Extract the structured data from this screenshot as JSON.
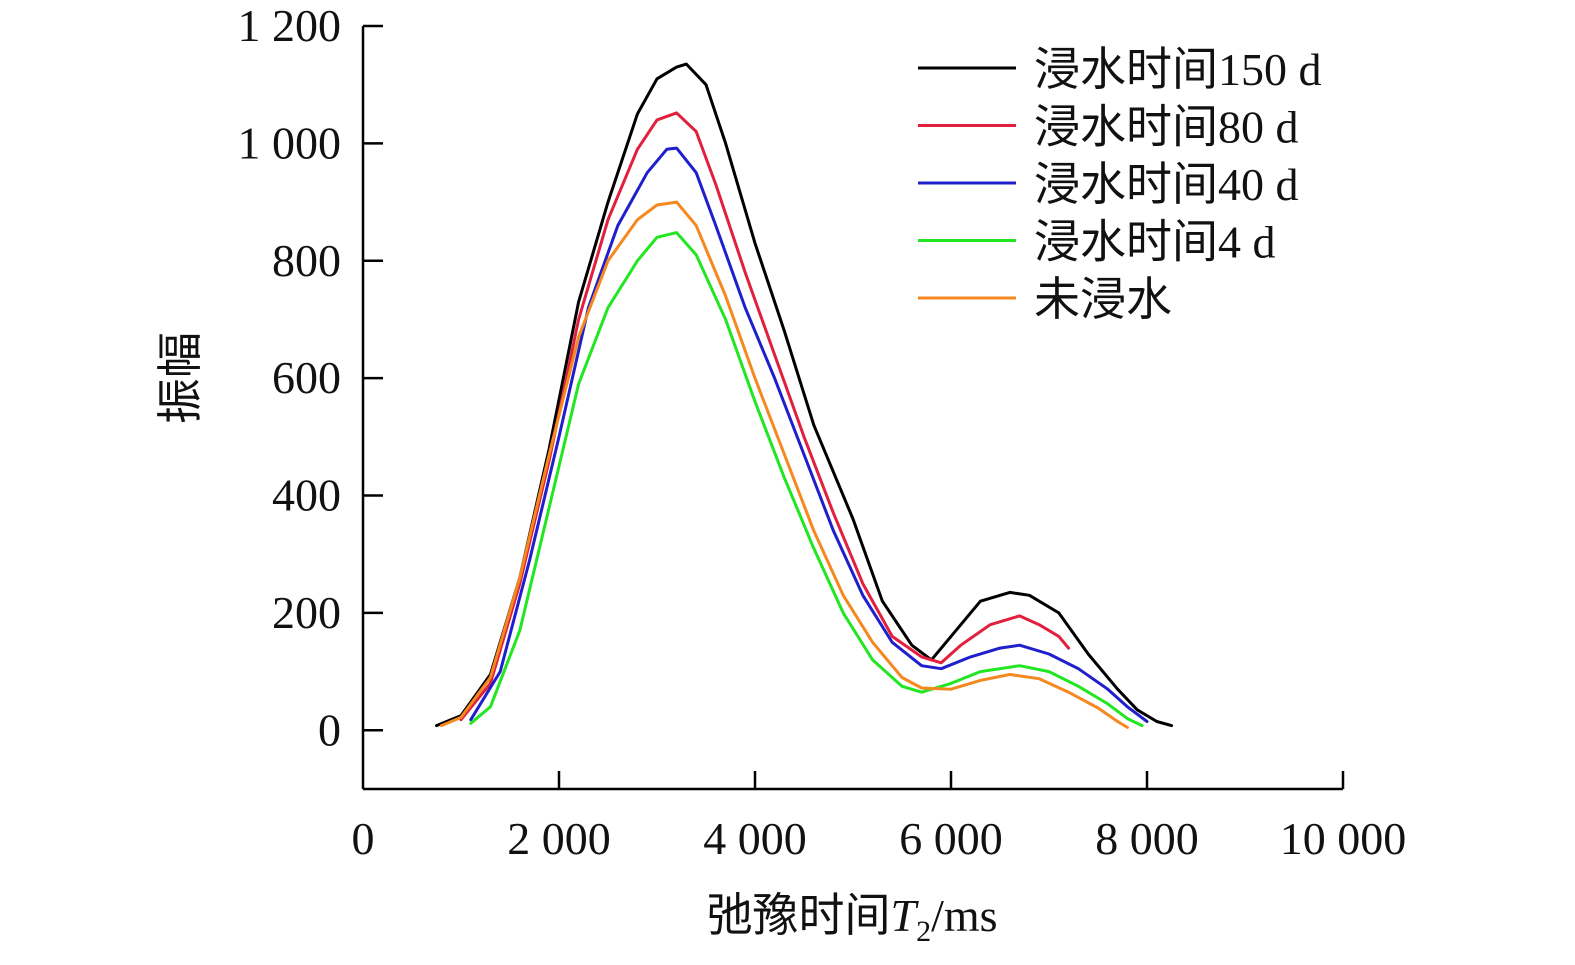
{
  "chart_data": {
    "type": "line",
    "title": "",
    "xlabel": "弛豫时间",
    "xlabel_symbol": "T",
    "xlabel_subscript": "2",
    "xlabel_unit": "/ms",
    "ylabel": "振幅",
    "xlim": [
      0,
      10000
    ],
    "ylim": [
      -100,
      1200
    ],
    "x_ticks": [
      0,
      2000,
      4000,
      6000,
      8000,
      10000
    ],
    "x_tick_labels": [
      "0",
      "2 000",
      "4 000",
      "6 000",
      "8 000",
      "10 000"
    ],
    "y_ticks": [
      0,
      200,
      400,
      600,
      800,
      1000,
      1200
    ],
    "y_tick_labels": [
      "0",
      "200",
      "400",
      "600",
      "800",
      "1 000",
      "1 200"
    ],
    "grid": false,
    "legend_position": "top-right",
    "series": [
      {
        "name": "浸水时间150 d",
        "color": "#000000",
        "points": [
          [
            750,
            8
          ],
          [
            1000,
            25
          ],
          [
            1300,
            95
          ],
          [
            1600,
            260
          ],
          [
            1900,
            480
          ],
          [
            2200,
            730
          ],
          [
            2500,
            900
          ],
          [
            2800,
            1050
          ],
          [
            3000,
            1110
          ],
          [
            3200,
            1130
          ],
          [
            3300,
            1135
          ],
          [
            3500,
            1100
          ],
          [
            3700,
            1000
          ],
          [
            4000,
            830
          ],
          [
            4300,
            680
          ],
          [
            4600,
            520
          ],
          [
            5000,
            360
          ],
          [
            5300,
            220
          ],
          [
            5600,
            145
          ],
          [
            5800,
            120
          ],
          [
            6000,
            160
          ],
          [
            6300,
            220
          ],
          [
            6600,
            235
          ],
          [
            6800,
            230
          ],
          [
            7100,
            200
          ],
          [
            7400,
            130
          ],
          [
            7700,
            70
          ],
          [
            7900,
            35
          ],
          [
            8100,
            15
          ],
          [
            8250,
            8
          ]
        ]
      },
      {
        "name": "浸水时间80 d",
        "color": "#e0203c",
        "points": [
          [
            1000,
            18
          ],
          [
            1300,
            80
          ],
          [
            1600,
            250
          ],
          [
            1900,
            460
          ],
          [
            2200,
            700
          ],
          [
            2500,
            870
          ],
          [
            2800,
            990
          ],
          [
            3000,
            1040
          ],
          [
            3200,
            1052
          ],
          [
            3400,
            1020
          ],
          [
            3600,
            930
          ],
          [
            3900,
            780
          ],
          [
            4200,
            640
          ],
          [
            4500,
            500
          ],
          [
            4800,
            370
          ],
          [
            5100,
            250
          ],
          [
            5400,
            160
          ],
          [
            5700,
            125
          ],
          [
            5900,
            115
          ],
          [
            6100,
            145
          ],
          [
            6400,
            180
          ],
          [
            6700,
            195
          ],
          [
            6900,
            180
          ],
          [
            7100,
            160
          ],
          [
            7200,
            140
          ]
        ]
      },
      {
        "name": "浸水时间40 d",
        "color": "#1f1fcc",
        "points": [
          [
            1100,
            18
          ],
          [
            1400,
            100
          ],
          [
            1700,
            290
          ],
          [
            2000,
            500
          ],
          [
            2300,
            720
          ],
          [
            2600,
            860
          ],
          [
            2900,
            950
          ],
          [
            3100,
            990
          ],
          [
            3200,
            992
          ],
          [
            3400,
            950
          ],
          [
            3600,
            860
          ],
          [
            3900,
            720
          ],
          [
            4200,
            600
          ],
          [
            4500,
            470
          ],
          [
            4800,
            340
          ],
          [
            5100,
            230
          ],
          [
            5400,
            150
          ],
          [
            5700,
            110
          ],
          [
            5900,
            105
          ],
          [
            6200,
            125
          ],
          [
            6500,
            140
          ],
          [
            6700,
            145
          ],
          [
            7000,
            130
          ],
          [
            7300,
            105
          ],
          [
            7600,
            70
          ],
          [
            7800,
            40
          ],
          [
            8000,
            15
          ]
        ]
      },
      {
        "name": "浸水时间4 d",
        "color": "#22e622",
        "points": [
          [
            1100,
            12
          ],
          [
            1300,
            40
          ],
          [
            1600,
            170
          ],
          [
            1900,
            380
          ],
          [
            2200,
            590
          ],
          [
            2500,
            720
          ],
          [
            2800,
            800
          ],
          [
            3000,
            840
          ],
          [
            3200,
            848
          ],
          [
            3400,
            810
          ],
          [
            3700,
            700
          ],
          [
            4000,
            560
          ],
          [
            4300,
            430
          ],
          [
            4600,
            310
          ],
          [
            4900,
            200
          ],
          [
            5200,
            120
          ],
          [
            5500,
            75
          ],
          [
            5700,
            65
          ],
          [
            6000,
            80
          ],
          [
            6300,
            100
          ],
          [
            6700,
            110
          ],
          [
            7000,
            100
          ],
          [
            7300,
            75
          ],
          [
            7600,
            45
          ],
          [
            7800,
            20
          ],
          [
            7950,
            8
          ]
        ]
      },
      {
        "name": "未浸水",
        "color": "#f5891f",
        "points": [
          [
            800,
            8
          ],
          [
            1000,
            22
          ],
          [
            1300,
            90
          ],
          [
            1600,
            260
          ],
          [
            1900,
            470
          ],
          [
            2200,
            670
          ],
          [
            2500,
            800
          ],
          [
            2800,
            870
          ],
          [
            3000,
            895
          ],
          [
            3200,
            900
          ],
          [
            3400,
            860
          ],
          [
            3700,
            740
          ],
          [
            4000,
            600
          ],
          [
            4300,
            470
          ],
          [
            4600,
            340
          ],
          [
            4900,
            230
          ],
          [
            5200,
            150
          ],
          [
            5500,
            90
          ],
          [
            5700,
            72
          ],
          [
            6000,
            70
          ],
          [
            6300,
            85
          ],
          [
            6600,
            95
          ],
          [
            6900,
            88
          ],
          [
            7200,
            65
          ],
          [
            7500,
            38
          ],
          [
            7700,
            15
          ],
          [
            7800,
            5
          ]
        ]
      }
    ]
  }
}
